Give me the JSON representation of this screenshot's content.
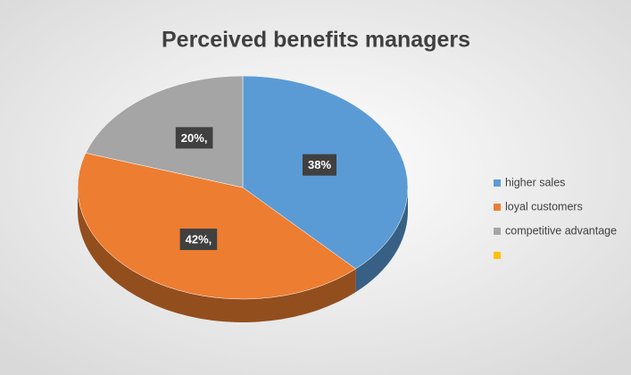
{
  "chart_data": {
    "type": "pie",
    "title": "Perceived benefits managers",
    "categories": [
      "higher sales",
      "loyal customers",
      "competitive advantage",
      null
    ],
    "values": [
      38,
      42,
      20,
      null
    ],
    "value_labels": [
      "38%",
      "42%,",
      "20%,",
      null
    ],
    "colors": [
      "#5b9bd5",
      "#ed7d31",
      "#a5a5a5",
      "#ffc000"
    ],
    "legend": "right"
  }
}
